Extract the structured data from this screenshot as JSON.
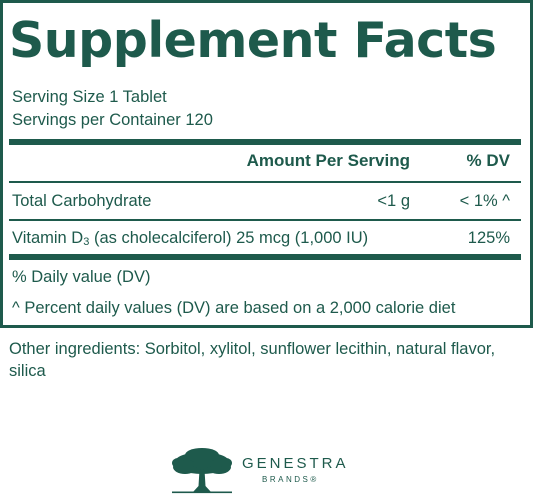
{
  "panel": {
    "title": "Supplement Facts",
    "serving_size": "Serving Size 1 Tablet",
    "servings_per_container": "Servings per Container 120",
    "header": {
      "amount": "Amount Per Serving",
      "dv": "% DV"
    },
    "rows": [
      {
        "name": "Total Carbohydrate",
        "amount": "<1 g",
        "dv": "< 1% ^"
      },
      {
        "name_prefix": "Vitamin D",
        "name_subscript": "3",
        "name_suffix": " (as cholecalciferol) 25 mcg (1,000 IU)",
        "amount": "",
        "dv": "125%"
      }
    ],
    "footnotes": [
      "% Daily value (DV)",
      "^ Percent daily values (DV) are based on a 2,000 calorie diet"
    ]
  },
  "other_ingredients": "Other ingredients: Sorbitol, xylitol, sunflower lecithin, natural flavor, silica",
  "logo": {
    "name": "GENESTRA",
    "sub": "BRANDS",
    "registered": "®"
  },
  "colors": {
    "brand_green": "#1e5a4c"
  },
  "icons": {
    "logo": "tree-icon"
  }
}
